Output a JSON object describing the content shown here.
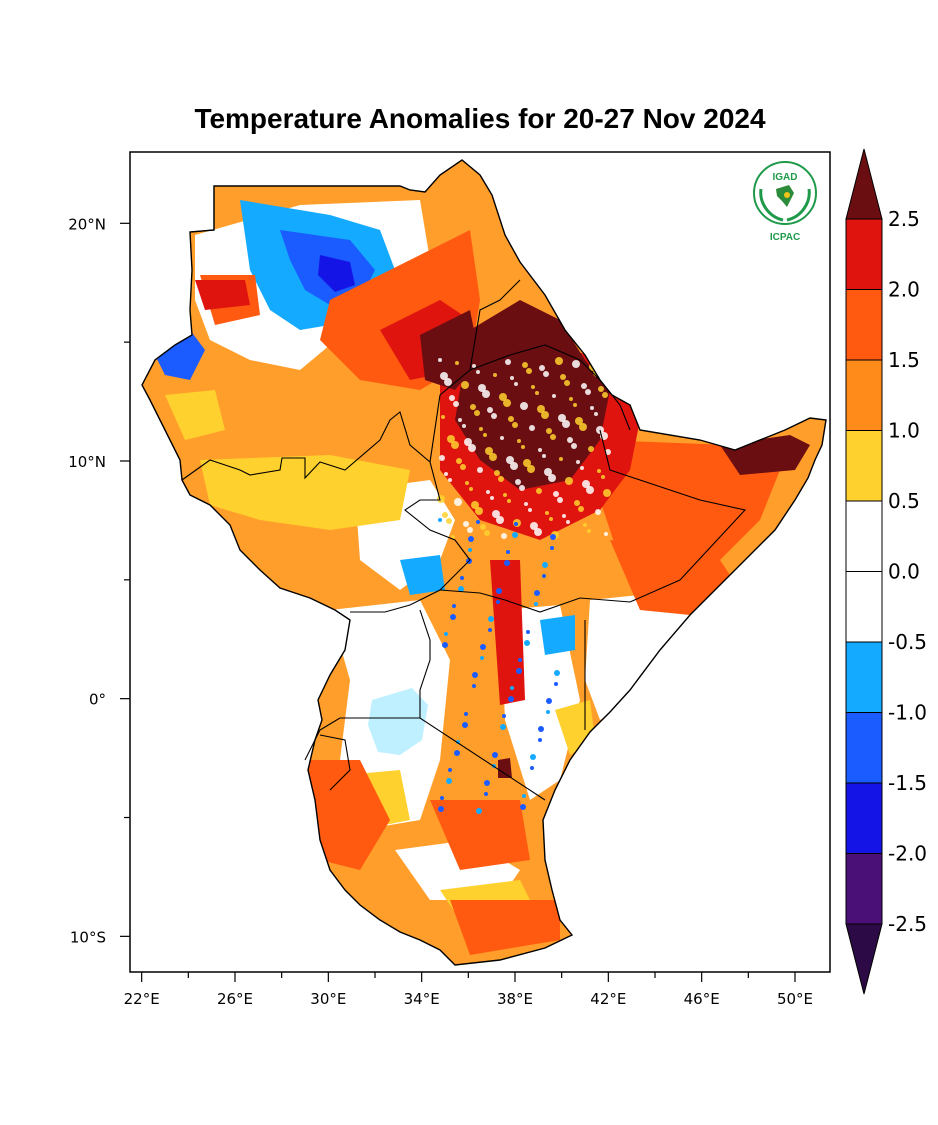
{
  "title": "Temperature Anomalies for 20-27 Nov 2024",
  "map": {
    "region": "Greater Horn of Africa",
    "lon_range": [
      21.5,
      51.5
    ],
    "lat_range": [
      -11.5,
      23.0
    ],
    "x_ticks": [
      {
        "lon": 22,
        "label": "22°E"
      },
      {
        "lon": 26,
        "label": "26°E"
      },
      {
        "lon": 30,
        "label": "30°E"
      },
      {
        "lon": 34,
        "label": "34°E"
      },
      {
        "lon": 38,
        "label": "38°E"
      },
      {
        "lon": 42,
        "label": "42°E"
      },
      {
        "lon": 46,
        "label": "46°E"
      },
      {
        "lon": 50,
        "label": "50°E"
      }
    ],
    "y_ticks": [
      {
        "lat": 20,
        "label": "20°N"
      },
      {
        "lat": 10,
        "label": "10°N"
      },
      {
        "lat": 0,
        "label": "0°"
      },
      {
        "lat": -10,
        "label": "10°S"
      }
    ]
  },
  "logo": {
    "top_text": "IGAD",
    "bottom_text": "ICPAC"
  },
  "colorbar": {
    "levels": [
      {
        "color": "#6b0e12"
      },
      {
        "color": "#e0140f"
      },
      {
        "color": "#ff5a10"
      },
      {
        "color": "#ff8c1a"
      },
      {
        "color": "#ffd12e"
      },
      {
        "color": "#ffffff"
      },
      {
        "color": "#ffffff"
      },
      {
        "color": "#14aaff"
      },
      {
        "color": "#1a5cff"
      },
      {
        "color": "#1414e6"
      },
      {
        "color": "#4b0f78"
      },
      {
        "color": "#2b0a46"
      }
    ],
    "labels": [
      "2.5",
      "2.0",
      "1.5",
      "1.0",
      "0.5",
      "0.0",
      "-0.5",
      "-1.0",
      "-1.5",
      "-2.0",
      "-2.5"
    ]
  }
}
